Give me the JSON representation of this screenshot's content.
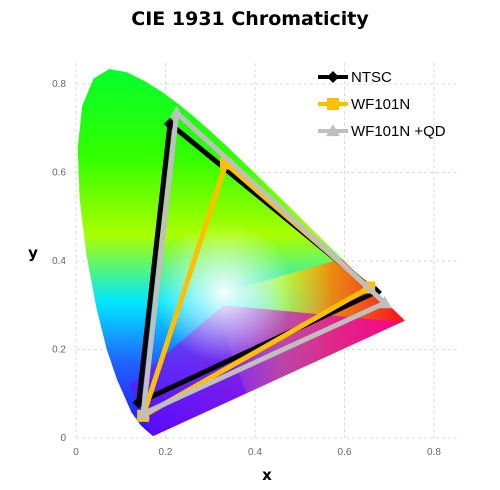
{
  "chart_data": {
    "type": "line",
    "title": "CIE 1931 Chromaticity",
    "xlabel": "x",
    "ylabel": "y",
    "xlim": [
      0,
      0.85
    ],
    "ylim": [
      0,
      0.85
    ],
    "x_ticks": [
      "0",
      "0.2",
      "0.4",
      "0.6",
      "0.8"
    ],
    "y_ticks": [
      "0",
      "0.2",
      "0.4",
      "0.6",
      "0.8"
    ],
    "grid": "dashed",
    "legend_position": "top-right",
    "series": [
      {
        "name": "NTSC",
        "color": "#000000",
        "marker": "diamond",
        "x": [
          0.67,
          0.21,
          0.14,
          0.67
        ],
        "y": [
          0.33,
          0.71,
          0.08,
          0.33
        ]
      },
      {
        "name": "WF101N",
        "color": "#ffc000",
        "marker": "square",
        "x": [
          0.655,
          0.335,
          0.15,
          0.655
        ],
        "y": [
          0.34,
          0.62,
          0.05,
          0.34
        ]
      },
      {
        "name": "WF101N +QD",
        "color": "#bfbfbf",
        "marker": "triangle",
        "x": [
          0.69,
          0.225,
          0.15,
          0.69
        ],
        "y": [
          0.305,
          0.735,
          0.055,
          0.305
        ]
      }
    ]
  }
}
